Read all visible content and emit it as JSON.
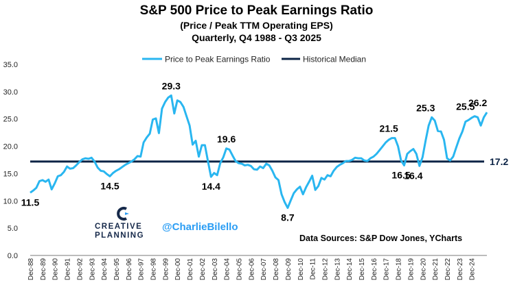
{
  "chart_data": {
    "type": "line",
    "title": "S&P 500 Price to Peak Earnings Ratio",
    "subtitle_lines": [
      "(Price / Peak TTM Operating EPS)",
      "Quarterly, Q4 1988 - Q3 2025"
    ],
    "ylim": [
      0,
      35
    ],
    "yticks": [
      "0.0",
      "5.0",
      "10.0",
      "15.0",
      "20.0",
      "25.0",
      "30.0",
      "35.0"
    ],
    "xticks": [
      "Dec-88",
      "Dec-89",
      "Dec-90",
      "Dec-91",
      "Dec-92",
      "Dec-93",
      "Dec-94",
      "Dec-95",
      "Dec-96",
      "Dec-97",
      "Dec-98",
      "Dec-99",
      "Dec-00",
      "Dec-01",
      "Dec-02",
      "Dec-03",
      "Dec-04",
      "Dec-05",
      "Dec-06",
      "Dec-07",
      "Dec-08",
      "Dec-09",
      "Dec-10",
      "Dec-11",
      "Dec-12",
      "Dec-13",
      "Dec-14",
      "Dec-15",
      "Dec-16",
      "Dec-17",
      "Dec-18",
      "Dec-19",
      "Dec-20",
      "Dec-21",
      "Dec-22",
      "Dec-23",
      "Dec-24"
    ],
    "grid": false,
    "legend_position": "top",
    "series": [
      {
        "name": "Price to Peak Earnings Ratio",
        "color": "#29b6f0",
        "values": [
          11.5,
          11.9,
          12.4,
          13.6,
          13.8,
          13.5,
          13.9,
          12.1,
          13.2,
          14.5,
          14.7,
          15.3,
          16.3,
          15.9,
          16.0,
          16.5,
          17.1,
          17.6,
          17.8,
          17.7,
          17.9,
          17.2,
          16.1,
          15.5,
          15.4,
          14.9,
          14.5,
          15.1,
          15.5,
          15.8,
          16.2,
          16.6,
          16.9,
          17.2,
          17.6,
          18.2,
          18.1,
          20.7,
          21.6,
          22.3,
          24.9,
          25.1,
          22.4,
          26.9,
          28.1,
          28.9,
          29.3,
          26.0,
          28.4,
          28.1,
          27.2,
          25.5,
          23.8,
          20.3,
          21.0,
          18.1,
          20.2,
          20.2,
          17.2,
          14.4,
          15.1,
          14.7,
          16.9,
          18.0,
          19.6,
          19.4,
          18.3,
          17.3,
          16.9,
          16.8,
          16.5,
          16.6,
          16.4,
          15.8,
          15.7,
          16.3,
          16.0,
          16.8,
          16.5,
          15.5,
          14.3,
          13.8,
          11.2,
          9.8,
          8.7,
          10.1,
          11.4,
          12.1,
          12.6,
          11.2,
          12.5,
          13.5,
          14.6,
          12.0,
          12.7,
          14.2,
          13.9,
          14.7,
          14.5,
          15.5,
          16.2,
          16.6,
          16.9,
          17.3,
          17.3,
          17.5,
          17.9,
          17.8,
          17.8,
          17.4,
          17.3,
          17.8,
          18.1,
          18.6,
          19.3,
          20.0,
          20.7,
          21.2,
          21.5,
          21.5,
          20.0,
          17.4,
          16.5,
          18.6,
          19.1,
          19.5,
          18.6,
          16.4,
          18.0,
          21.0,
          23.8,
          25.3,
          24.7,
          22.8,
          22.7,
          21.2,
          17.8,
          17.4,
          18.1,
          19.8,
          21.4,
          22.7,
          24.5,
          24.8,
          25.2,
          25.5,
          25.3,
          23.8,
          25.3,
          26.2
        ]
      },
      {
        "name": "Historical Median",
        "color": "#0b2345",
        "value": 17.2
      }
    ],
    "annotations": [
      {
        "text": "11.5",
        "x_index": 0,
        "y": 11.5,
        "pos": "below"
      },
      {
        "text": "14.5",
        "x_index": 26,
        "y": 14.5,
        "pos": "below"
      },
      {
        "text": "29.3",
        "x_index": 46,
        "y": 29.3,
        "pos": "above"
      },
      {
        "text": "14.4",
        "x_index": 59,
        "y": 14.4,
        "pos": "below"
      },
      {
        "text": "19.6",
        "x_index": 64,
        "y": 19.6,
        "pos": "above"
      },
      {
        "text": "8.7",
        "x_index": 84,
        "y": 8.7,
        "pos": "below"
      },
      {
        "text": "21.5",
        "x_index": 117,
        "y": 21.5,
        "pos": "above"
      },
      {
        "text": "16.5",
        "x_index": 121,
        "y": 16.5,
        "pos": "below"
      },
      {
        "text": "16.4",
        "x_index": 125,
        "y": 16.4,
        "pos": "below"
      },
      {
        "text": "25.3",
        "x_index": 129,
        "y": 25.3,
        "pos": "above"
      },
      {
        "text": "25.5",
        "x_index": 142,
        "y": 25.5,
        "pos": "above"
      },
      {
        "text": "26.2",
        "x_index": 146,
        "y": 26.2,
        "pos": "above"
      },
      {
        "text": "17.2",
        "x_index": 147,
        "y": 17.2,
        "pos": "right"
      }
    ]
  },
  "branding": {
    "line1": "CREATIVE",
    "line2": "PLANNING",
    "handle": "@CharlieBilello",
    "sources": "Data Sources: S&P Dow Jones, YCharts"
  }
}
